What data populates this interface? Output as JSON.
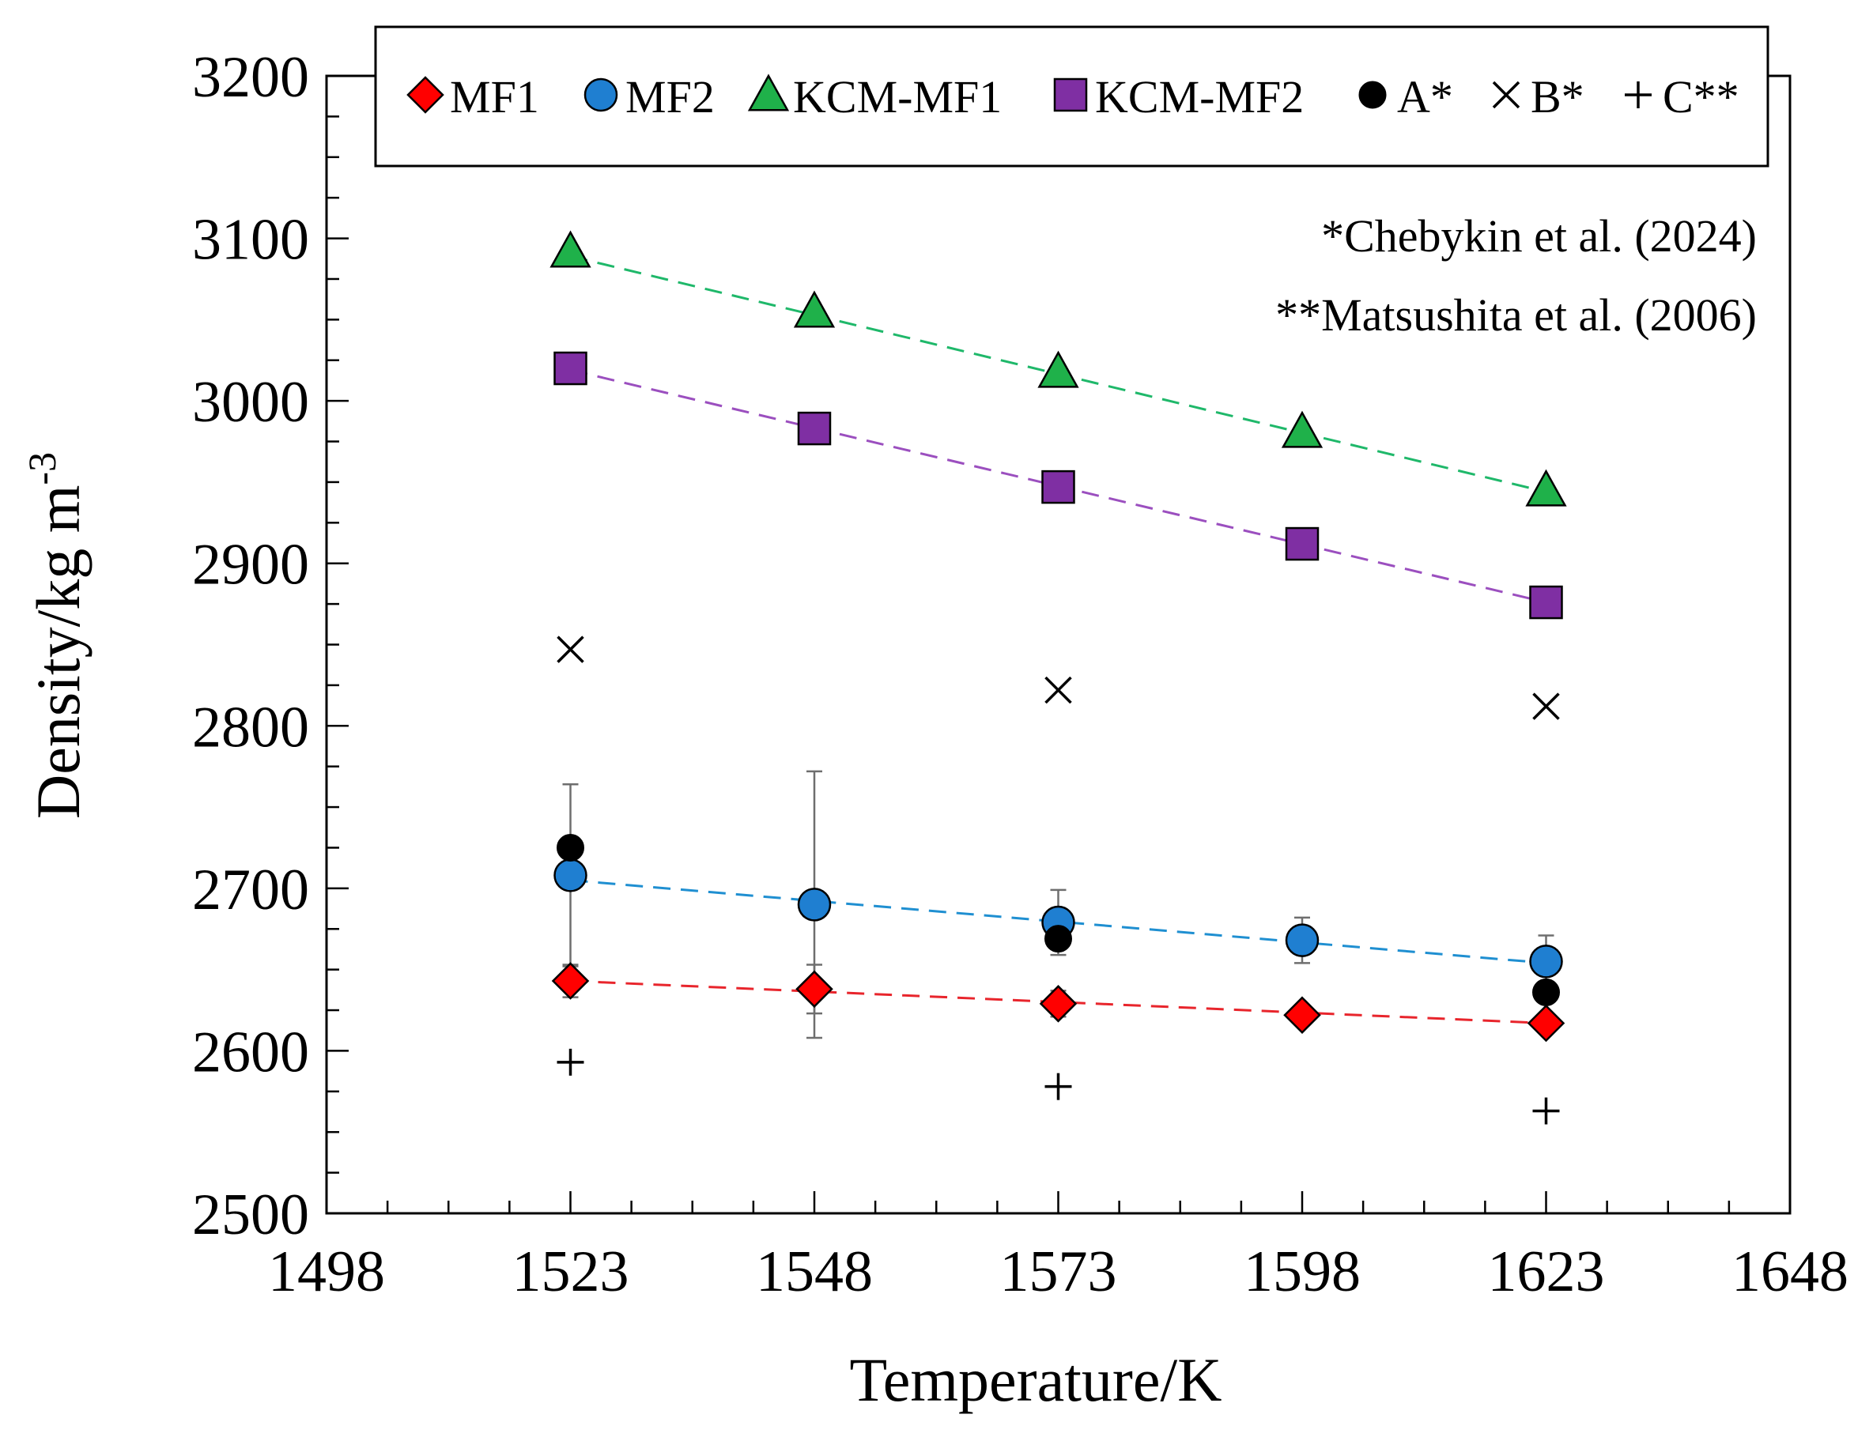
{
  "chart_data": {
    "type": "scatter",
    "title": "",
    "xlabel": "Temperature/K",
    "ylabel": {
      "base": "Density/kg m",
      "superscript": "-3"
    },
    "xlim": [
      1498,
      1648
    ],
    "ylim": [
      2500,
      3200
    ],
    "xticks": [
      1498,
      1523,
      1548,
      1573,
      1598,
      1623,
      1648
    ],
    "yticks": [
      2500,
      2600,
      2700,
      2800,
      2900,
      3000,
      3100,
      3200
    ],
    "grid": false,
    "legend_position": "top",
    "series": [
      {
        "name": "MF1",
        "marker": "diamond",
        "color": "#ff0000",
        "x": [
          1523,
          1548,
          1573,
          1598,
          1623
        ],
        "y": [
          2643,
          2638,
          2629,
          2622,
          2617
        ],
        "yerr": [
          10,
          15,
          8,
          6,
          5
        ],
        "fit": {
          "type": "linear",
          "color": "#e8252c",
          "x": [
            1523,
            1623
          ],
          "y": [
            2643,
            2617
          ]
        }
      },
      {
        "name": "MF2",
        "marker": "circle",
        "color": "#1f7fd1",
        "x": [
          1523,
          1548,
          1573,
          1598,
          1623
        ],
        "y": [
          2708,
          2690,
          2679,
          2668,
          2655
        ],
        "yerr": [
          56,
          82,
          20,
          14,
          16
        ],
        "fit": {
          "type": "linear",
          "color": "#1f8fd1",
          "x": [
            1523,
            1623
          ],
          "y": [
            2705,
            2654
          ]
        }
      },
      {
        "name": "KCM-MF1",
        "marker": "triangle",
        "color": "#1fb14a",
        "x": [
          1523,
          1548,
          1573,
          1598,
          1623
        ],
        "y": [
          3092,
          3055,
          3018,
          2981,
          2945
        ],
        "fit": {
          "type": "linear",
          "color": "#1fb86a",
          "x": [
            1523,
            1623
          ],
          "y": [
            3089,
            2944
          ]
        }
      },
      {
        "name": "KCM-MF2",
        "marker": "square",
        "color": "#7f2fa3",
        "x": [
          1523,
          1548,
          1573,
          1598,
          1623
        ],
        "y": [
          3020,
          2983,
          2947,
          2912,
          2876
        ],
        "fit": {
          "type": "linear",
          "color": "#9b4fbf",
          "x": [
            1523,
            1623
          ],
          "y": [
            3019,
            2876
          ]
        }
      },
      {
        "name": "A*",
        "marker": "filled-circle",
        "color": "#000000",
        "x": [
          1523,
          1573,
          1623
        ],
        "y": [
          2725,
          2669,
          2636
        ]
      },
      {
        "name": "B*",
        "marker": "x",
        "color": "#000000",
        "x": [
          1523,
          1573,
          1623
        ],
        "y": [
          2847,
          2822,
          2812
        ]
      },
      {
        "name": "C**",
        "marker": "plus",
        "color": "#000000",
        "x": [
          1523,
          1573,
          1623
        ],
        "y": [
          2593,
          2578,
          2563
        ]
      }
    ],
    "annotations": [
      "*Chebykin et al. (2024)",
      "**Matsushita et al. (2006)"
    ]
  }
}
